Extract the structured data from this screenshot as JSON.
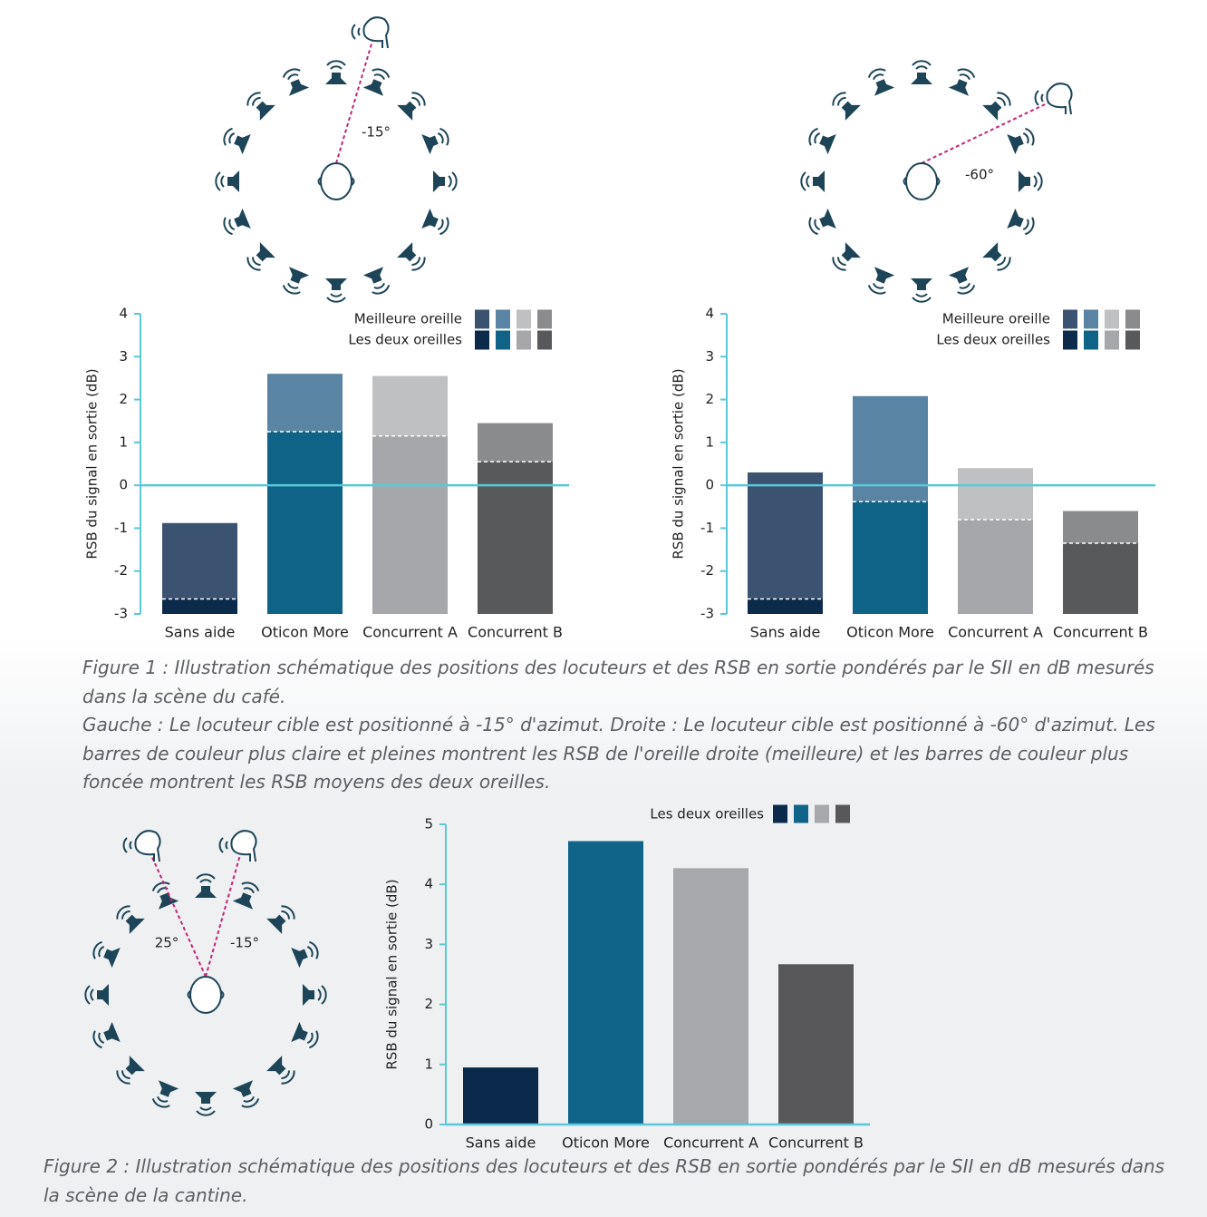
{
  "chart_data": [
    {
      "type": "bar",
      "y_label": "RSB du signal en sortie (dB)",
      "categories": [
        "Sans aide",
        "Oticon More",
        "Concurrent A",
        "Concurrent B"
      ],
      "ylim": [
        -3,
        4
      ],
      "yticks": [
        -3,
        -2,
        -1,
        0,
        1,
        2,
        3,
        4
      ],
      "overlay": true,
      "series": [
        {
          "name": "Meilleure oreille",
          "colors": [
            "#3b5370",
            "#5a84a3",
            "#bfc0c2",
            "#8a8b8d"
          ],
          "values": [
            -0.88,
            2.6,
            2.55,
            1.45
          ]
        },
        {
          "name": "Les deux oreilles",
          "colors": [
            "#0c2a4a",
            "#0e6387",
            "#a6a7aa",
            "#58595b"
          ],
          "values": [
            -2.65,
            1.25,
            1.15,
            0.55
          ]
        }
      ]
    },
    {
      "type": "bar",
      "y_label": "RSB du signal en sortie (dB)",
      "categories": [
        "Sans aide",
        "Oticon More",
        "Concurrent A",
        "Concurrent B"
      ],
      "ylim": [
        -3,
        4
      ],
      "yticks": [
        -3,
        -2,
        -1,
        0,
        1,
        2,
        3,
        4
      ],
      "overlay": true,
      "series": [
        {
          "name": "Meilleure oreille",
          "colors": [
            "#3b5370",
            "#5a84a3",
            "#bfc0c2",
            "#8a8b8d"
          ],
          "values": [
            0.3,
            2.08,
            0.4,
            -0.6
          ]
        },
        {
          "name": "Les deux oreilles",
          "colors": [
            "#0c2a4a",
            "#0e6387",
            "#a6a7aa",
            "#58595b"
          ],
          "values": [
            -2.65,
            -0.38,
            -0.8,
            -1.35
          ]
        }
      ]
    },
    {
      "type": "bar",
      "y_label": "RSB du signal en sortie (dB)",
      "categories": [
        "Sans aide",
        "Oticon More",
        "Concurrent A",
        "Concurrent B"
      ],
      "ylim": [
        0,
        5
      ],
      "yticks": [
        0,
        1,
        2,
        3,
        4,
        5
      ],
      "overlay": false,
      "series": [
        {
          "name": "Les deux oreilles",
          "colors": [
            "#0b2a4b",
            "#106489",
            "#a7a8ab",
            "#58585a"
          ],
          "values": [
            0.95,
            4.72,
            4.27,
            2.67
          ]
        }
      ]
    }
  ],
  "diagram_labels": [
    "-15°",
    "-60°",
    "25°",
    "-15°"
  ],
  "captions": [
    "Figure 1 : Illustration schématique des positions des locuteurs et des RSB en sortie pondérés par le SII en dB mesurés dans la scène du café.",
    "Gauche : Le locuteur cible est positionné à -15° d'azimut. Droite : Le locuteur cible est positionné à -60° d'azimut. Les barres de couleur plus claire et pleines montrent les RSB de l'oreille droite (meilleure) et les barres de couleur plus foncée montrent les RSB moyens des deux oreilles.",
    "Figure 2 : Illustration schématique des positions des locuteurs et des RSB en sortie pondérés par le SII en dB mesurés dans la scène de la cantine."
  ]
}
